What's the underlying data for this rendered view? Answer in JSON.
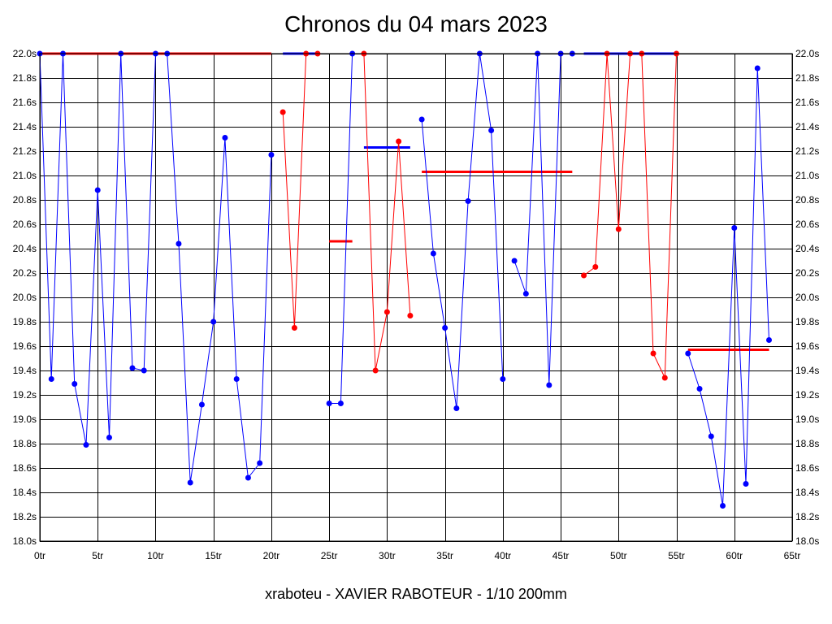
{
  "chart_data": {
    "type": "line",
    "title": "Chronos du 04 mars 2023",
    "footer": "xraboteu - XAVIER RABOTEUR - 1/10 200mm",
    "xlim": [
      0,
      65
    ],
    "ylim": [
      18.0,
      22.0
    ],
    "x_ticks": [
      {
        "value": 0,
        "label": "0tr"
      },
      {
        "value": 5,
        "label": "5tr"
      },
      {
        "value": 10,
        "label": "10tr"
      },
      {
        "value": 15,
        "label": "15tr"
      },
      {
        "value": 20,
        "label": "20tr"
      },
      {
        "value": 25,
        "label": "25tr"
      },
      {
        "value": 30,
        "label": "30tr"
      },
      {
        "value": 35,
        "label": "35tr"
      },
      {
        "value": 40,
        "label": "40tr"
      },
      {
        "value": 45,
        "label": "45tr"
      },
      {
        "value": 50,
        "label": "50tr"
      },
      {
        "value": 55,
        "label": "55tr"
      },
      {
        "value": 60,
        "label": "60tr"
      },
      {
        "value": 65,
        "label": "65tr"
      }
    ],
    "y_ticks": [
      {
        "value": 18.0,
        "label": "18.0s"
      },
      {
        "value": 18.2,
        "label": "18.2s"
      },
      {
        "value": 18.4,
        "label": "18.4s"
      },
      {
        "value": 18.6,
        "label": "18.6s"
      },
      {
        "value": 18.8,
        "label": "18.8s"
      },
      {
        "value": 19.0,
        "label": "19.0s"
      },
      {
        "value": 19.2,
        "label": "19.2s"
      },
      {
        "value": 19.4,
        "label": "19.4s"
      },
      {
        "value": 19.6,
        "label": "19.6s"
      },
      {
        "value": 19.8,
        "label": "19.8s"
      },
      {
        "value": 20.0,
        "label": "20.0s"
      },
      {
        "value": 20.2,
        "label": "20.2s"
      },
      {
        "value": 20.4,
        "label": "20.4s"
      },
      {
        "value": 20.6,
        "label": "20.6s"
      },
      {
        "value": 20.8,
        "label": "20.8s"
      },
      {
        "value": 21.0,
        "label": "21.0s"
      },
      {
        "value": 21.2,
        "label": "21.2s"
      },
      {
        "value": 21.4,
        "label": "21.4s"
      },
      {
        "value": 21.6,
        "label": "21.6s"
      },
      {
        "value": 21.8,
        "label": "21.8s"
      },
      {
        "value": 22.0,
        "label": "22.0s"
      }
    ],
    "grid": true,
    "colors": {
      "blue": "#0000ff",
      "red": "#ff0000",
      "grid": "#000000"
    },
    "series": [
      {
        "color": "#0000ff",
        "points": [
          [
            0,
            22.0
          ],
          [
            1,
            19.33
          ],
          [
            2,
            22.0
          ],
          [
            3,
            19.29
          ],
          [
            4,
            18.79
          ],
          [
            5,
            20.88
          ],
          [
            6,
            18.85
          ],
          [
            7,
            22.0
          ],
          [
            8,
            19.42
          ],
          [
            9,
            19.4
          ],
          [
            10,
            22.0
          ],
          [
            11,
            22.0
          ],
          [
            12,
            20.44
          ],
          [
            13,
            18.48
          ],
          [
            14,
            19.12
          ],
          [
            15,
            19.8
          ],
          [
            16,
            21.31
          ],
          [
            17,
            19.33
          ],
          [
            18,
            18.52
          ],
          [
            19,
            18.64
          ],
          [
            20,
            21.17
          ]
        ]
      },
      {
        "color": "#ff0000",
        "points": [
          [
            21,
            21.52
          ],
          [
            22,
            19.75
          ],
          [
            23,
            22.0
          ],
          [
            24,
            22.0
          ]
        ]
      },
      {
        "color": "#0000ff",
        "points": [
          [
            25,
            19.13
          ],
          [
            26,
            19.13
          ],
          [
            27,
            22.0
          ]
        ]
      },
      {
        "color": "#ff0000",
        "points": [
          [
            28,
            22.0
          ],
          [
            29,
            19.4
          ],
          [
            30,
            19.88
          ],
          [
            31,
            21.28
          ],
          [
            32,
            19.85
          ]
        ]
      },
      {
        "color": "#0000ff",
        "points": [
          [
            33,
            21.46
          ],
          [
            34,
            20.36
          ],
          [
            35,
            19.75
          ],
          [
            36,
            19.09
          ],
          [
            37,
            20.79
          ],
          [
            38,
            22.0
          ],
          [
            39,
            21.37
          ],
          [
            40,
            19.33
          ]
        ]
      },
      {
        "color": "#0000ff",
        "points": [
          [
            41,
            20.3
          ],
          [
            42,
            20.03
          ],
          [
            43,
            22.0
          ],
          [
            44,
            19.28
          ],
          [
            45,
            22.0
          ],
          [
            46,
            22.0
          ]
        ]
      },
      {
        "color": "#ff0000",
        "points": [
          [
            47,
            20.18
          ],
          [
            48,
            20.25
          ],
          [
            49,
            22.0
          ],
          [
            50,
            20.56
          ],
          [
            51,
            22.0
          ],
          [
            52,
            22.0
          ],
          [
            53,
            19.54
          ],
          [
            54,
            19.34
          ],
          [
            55,
            22.0
          ]
        ]
      },
      {
        "color": "#0000ff",
        "points": [
          [
            56,
            19.54
          ],
          [
            57,
            19.25
          ],
          [
            58,
            18.86
          ],
          [
            59,
            18.29
          ],
          [
            60,
            20.57
          ],
          [
            61,
            18.47
          ],
          [
            62,
            21.88
          ],
          [
            63,
            19.65
          ]
        ]
      }
    ],
    "average_lines": [
      {
        "color": "#ff0000",
        "x": [
          0,
          20
        ],
        "y": 22.0
      },
      {
        "color": "#0000ff",
        "x": [
          21,
          24
        ],
        "y": 22.0
      },
      {
        "color": "#ff0000",
        "x": [
          25,
          27
        ],
        "y": 20.46
      },
      {
        "color": "#0000ff",
        "x": [
          28,
          32
        ],
        "y": 21.23
      },
      {
        "color": "#ff0000",
        "x": [
          33,
          46
        ],
        "y": 21.03
      },
      {
        "color": "#0000ff",
        "x": [
          47,
          55
        ],
        "y": 22.0
      },
      {
        "color": "#ff0000",
        "x": [
          56,
          63
        ],
        "y": 19.57
      }
    ]
  }
}
